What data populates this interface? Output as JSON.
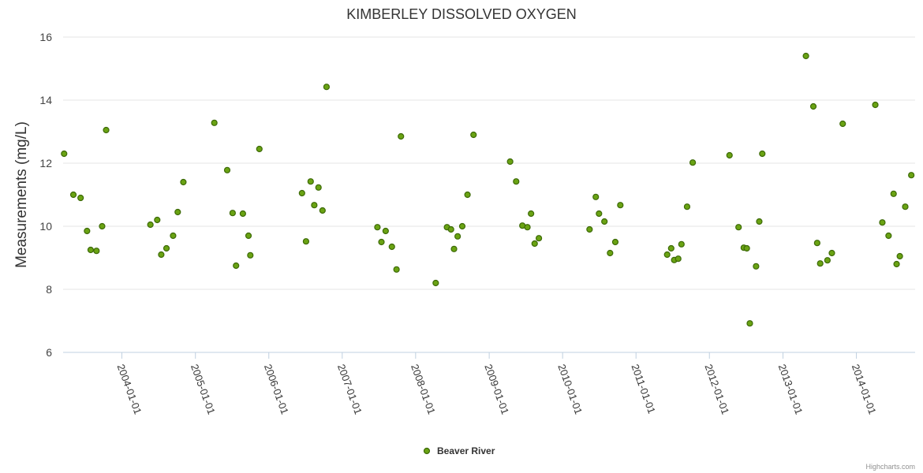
{
  "chart_data": {
    "type": "scatter",
    "title": "KIMBERLEY DISSOLVED OXYGEN",
    "xlabel": "",
    "ylabel": "Measurements (mg/L)",
    "ylim": [
      6,
      16
    ],
    "y_ticks": [
      "6",
      "8",
      "10",
      "12",
      "14",
      "16"
    ],
    "x_range": [
      "2003-03-15",
      "2014-10-20"
    ],
    "x_ticks": [
      "2004-01-01",
      "2005-01-01",
      "2006-01-01",
      "2007-01-01",
      "2008-01-01",
      "2009-01-01",
      "2010-01-01",
      "2011-01-01",
      "2012-01-01",
      "2013-01-01",
      "2014-01-01"
    ],
    "grid": true,
    "legend": "bottom-center",
    "point_color": "#6aa313",
    "series": [
      {
        "name": "Beaver River",
        "points": [
          {
            "x": "2003-03-20",
            "y": 12.3
          },
          {
            "x": "2003-05-05",
            "y": 11.0
          },
          {
            "x": "2003-06-10",
            "y": 10.9
          },
          {
            "x": "2003-07-12",
            "y": 9.85
          },
          {
            "x": "2003-07-30",
            "y": 9.25
          },
          {
            "x": "2003-08-28",
            "y": 9.22
          },
          {
            "x": "2003-09-25",
            "y": 10.0
          },
          {
            "x": "2003-10-15",
            "y": 13.05
          },
          {
            "x": "2004-05-22",
            "y": 10.05
          },
          {
            "x": "2004-06-25",
            "y": 10.2
          },
          {
            "x": "2004-07-15",
            "y": 9.1
          },
          {
            "x": "2004-08-10",
            "y": 9.3
          },
          {
            "x": "2004-09-12",
            "y": 9.7
          },
          {
            "x": "2004-10-05",
            "y": 10.45
          },
          {
            "x": "2004-11-02",
            "y": 11.4
          },
          {
            "x": "2005-04-05",
            "y": 13.28
          },
          {
            "x": "2005-06-08",
            "y": 11.78
          },
          {
            "x": "2005-07-05",
            "y": 10.42
          },
          {
            "x": "2005-07-22",
            "y": 8.75
          },
          {
            "x": "2005-08-25",
            "y": 10.4
          },
          {
            "x": "2005-09-22",
            "y": 9.7
          },
          {
            "x": "2005-10-01",
            "y": 9.08
          },
          {
            "x": "2005-11-15",
            "y": 12.45
          },
          {
            "x": "2006-06-15",
            "y": 11.05
          },
          {
            "x": "2006-07-05",
            "y": 9.52
          },
          {
            "x": "2006-07-28",
            "y": 11.42
          },
          {
            "x": "2006-08-15",
            "y": 10.67
          },
          {
            "x": "2006-09-05",
            "y": 11.23
          },
          {
            "x": "2006-09-25",
            "y": 10.5
          },
          {
            "x": "2006-10-15",
            "y": 14.42
          },
          {
            "x": "2007-06-25",
            "y": 9.97
          },
          {
            "x": "2007-07-15",
            "y": 9.5
          },
          {
            "x": "2007-08-05",
            "y": 9.85
          },
          {
            "x": "2007-09-05",
            "y": 9.35
          },
          {
            "x": "2007-09-28",
            "y": 8.63
          },
          {
            "x": "2007-10-20",
            "y": 12.85
          },
          {
            "x": "2008-04-10",
            "y": 8.2
          },
          {
            "x": "2008-06-05",
            "y": 9.97
          },
          {
            "x": "2008-06-25",
            "y": 9.9
          },
          {
            "x": "2008-07-10",
            "y": 9.28
          },
          {
            "x": "2008-07-28",
            "y": 9.68
          },
          {
            "x": "2008-08-20",
            "y": 10.0
          },
          {
            "x": "2008-09-15",
            "y": 11.0
          },
          {
            "x": "2008-10-15",
            "y": 12.9
          },
          {
            "x": "2009-04-15",
            "y": 12.05
          },
          {
            "x": "2009-05-15",
            "y": 11.42
          },
          {
            "x": "2009-06-15",
            "y": 10.02
          },
          {
            "x": "2009-07-10",
            "y": 9.97
          },
          {
            "x": "2009-07-28",
            "y": 10.4
          },
          {
            "x": "2009-08-15",
            "y": 9.45
          },
          {
            "x": "2009-09-05",
            "y": 9.62
          },
          {
            "x": "2010-05-15",
            "y": 9.9
          },
          {
            "x": "2010-06-15",
            "y": 10.93
          },
          {
            "x": "2010-07-01",
            "y": 10.4
          },
          {
            "x": "2010-07-28",
            "y": 10.15
          },
          {
            "x": "2010-08-25",
            "y": 9.15
          },
          {
            "x": "2010-09-20",
            "y": 9.5
          },
          {
            "x": "2010-10-15",
            "y": 10.67
          },
          {
            "x": "2011-06-05",
            "y": 9.1
          },
          {
            "x": "2011-06-25",
            "y": 9.3
          },
          {
            "x": "2011-07-10",
            "y": 8.93
          },
          {
            "x": "2011-07-30",
            "y": 8.97
          },
          {
            "x": "2011-08-15",
            "y": 9.43
          },
          {
            "x": "2011-09-12",
            "y": 10.62
          },
          {
            "x": "2011-10-10",
            "y": 12.02
          },
          {
            "x": "2012-04-10",
            "y": 12.25
          },
          {
            "x": "2012-05-25",
            "y": 9.97
          },
          {
            "x": "2012-06-20",
            "y": 9.32
          },
          {
            "x": "2012-07-05",
            "y": 9.3
          },
          {
            "x": "2012-07-20",
            "y": 6.92
          },
          {
            "x": "2012-08-20",
            "y": 8.73
          },
          {
            "x": "2012-09-05",
            "y": 10.15
          },
          {
            "x": "2012-09-20",
            "y": 12.3
          },
          {
            "x": "2013-04-25",
            "y": 15.4
          },
          {
            "x": "2013-06-01",
            "y": 13.8
          },
          {
            "x": "2013-06-20",
            "y": 9.47
          },
          {
            "x": "2013-07-05",
            "y": 8.82
          },
          {
            "x": "2013-08-10",
            "y": 8.92
          },
          {
            "x": "2013-09-01",
            "y": 9.15
          },
          {
            "x": "2013-10-25",
            "y": 13.25
          },
          {
            "x": "2014-04-05",
            "y": 13.85
          },
          {
            "x": "2014-05-10",
            "y": 10.12
          },
          {
            "x": "2014-06-10",
            "y": 9.7
          },
          {
            "x": "2014-07-05",
            "y": 11.03
          },
          {
            "x": "2014-07-20",
            "y": 8.8
          },
          {
            "x": "2014-08-05",
            "y": 9.05
          },
          {
            "x": "2014-09-01",
            "y": 10.62
          },
          {
            "x": "2014-10-01",
            "y": 11.62
          }
        ]
      }
    ]
  },
  "credits": "Highcharts.com"
}
